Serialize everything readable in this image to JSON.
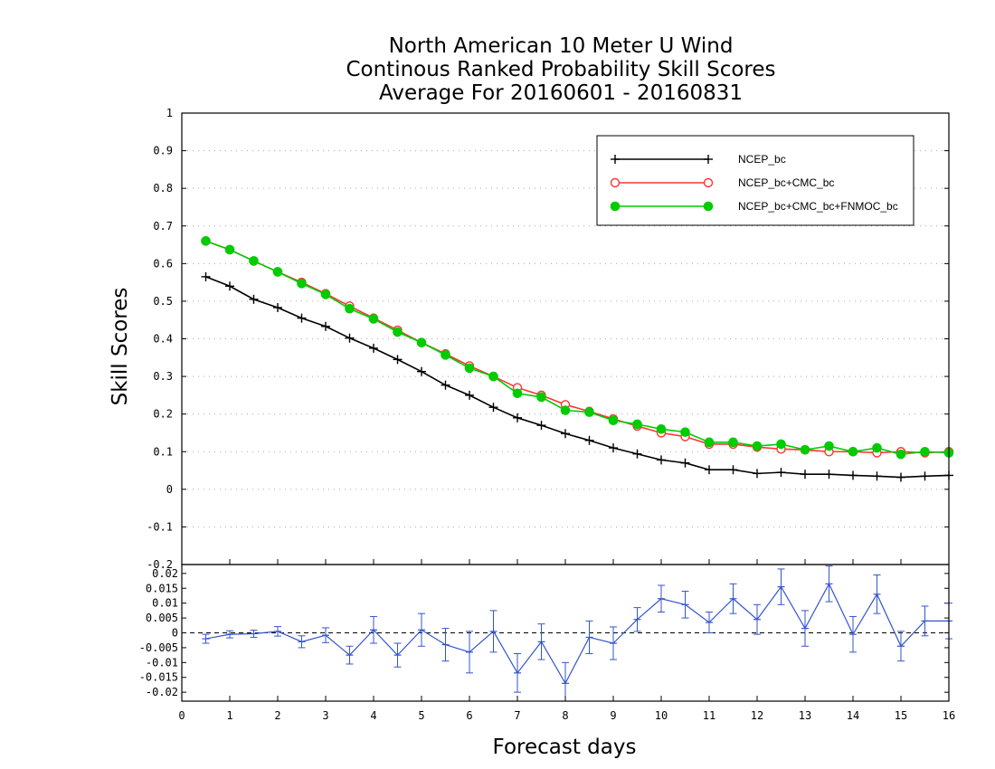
{
  "chart_data": [
    {
      "type": "line",
      "title": [
        "North American 10 Meter U Wind",
        "Continous Ranked Probability Skill Scores",
        "Average For 20160601 - 20160831"
      ],
      "xlabel": "Forecast days",
      "ylabel": "Skill Scores",
      "xlim": [
        0,
        16
      ],
      "ylim": [
        -0.2,
        1
      ],
      "x_ticks": [
        "0",
        "1",
        "2",
        "3",
        "4",
        "5",
        "6",
        "7",
        "8",
        "9",
        "10",
        "11",
        "12",
        "13",
        "14",
        "15",
        "16"
      ],
      "y_ticks": [
        "-0.2",
        "-0.1",
        "0",
        "0.1",
        "0.2",
        "0.3",
        "0.4",
        "0.5",
        "0.6",
        "0.7",
        "0.8",
        "0.9",
        "1"
      ],
      "grid": "horizontal dotted",
      "legend_position": "top-right",
      "x": [
        0.5,
        1,
        1.5,
        2,
        2.5,
        3,
        3.5,
        4,
        4.5,
        5,
        5.5,
        6,
        6.5,
        7,
        7.5,
        8,
        8.5,
        9,
        9.5,
        10,
        10.5,
        11,
        11.5,
        12,
        12.5,
        13,
        13.5,
        14,
        14.5,
        15,
        15.5,
        16
      ],
      "series": [
        {
          "name": "NCEP_bc",
          "color": "#000000",
          "marker": "plus",
          "values": [
            0.565,
            0.54,
            0.505,
            0.483,
            0.455,
            0.433,
            0.402,
            0.375,
            0.345,
            0.313,
            0.277,
            0.25,
            0.218,
            0.19,
            0.17,
            0.148,
            0.13,
            0.11,
            0.094,
            0.078,
            0.07,
            0.052,
            0.052,
            0.042,
            0.045,
            0.04,
            0.04,
            0.037,
            0.035,
            0.032,
            0.035,
            0.037
          ]
        },
        {
          "name": "NCEP_bc+CMC_bc",
          "color": "#ff3333",
          "marker": "open-circle",
          "values": [
            0.66,
            0.637,
            0.607,
            0.578,
            0.55,
            0.52,
            0.487,
            0.455,
            0.423,
            0.39,
            0.36,
            0.328,
            0.3,
            0.27,
            0.25,
            0.225,
            0.207,
            0.187,
            0.168,
            0.15,
            0.14,
            0.12,
            0.12,
            0.112,
            0.107,
            0.105,
            0.1,
            0.1,
            0.097,
            0.1,
            0.097,
            0.1
          ]
        },
        {
          "name": "NCEP_bc+CMC_bc+FNMOC_bc",
          "color": "#00cc00",
          "marker": "filled-circle",
          "values": [
            0.66,
            0.637,
            0.607,
            0.578,
            0.547,
            0.518,
            0.48,
            0.453,
            0.418,
            0.39,
            0.357,
            0.322,
            0.3,
            0.255,
            0.245,
            0.21,
            0.205,
            0.183,
            0.173,
            0.16,
            0.152,
            0.125,
            0.125,
            0.115,
            0.12,
            0.105,
            0.115,
            0.1,
            0.11,
            0.093,
            0.1,
            0.097
          ]
        }
      ]
    },
    {
      "type": "line",
      "panel": "difference",
      "xlim": [
        0,
        16
      ],
      "ylim": [
        -0.023,
        0.023
      ],
      "y_ticks": [
        "-0.02",
        "-0.015",
        "-0.01",
        "-0.005",
        "0",
        "0.005",
        "0.01",
        "0.015",
        "0.02"
      ],
      "x": [
        0.5,
        1,
        1.5,
        2,
        2.5,
        3,
        3.5,
        4,
        4.5,
        5,
        5.5,
        6,
        6.5,
        7,
        7.5,
        8,
        8.5,
        9,
        9.5,
        10,
        10.5,
        11,
        11.5,
        12,
        12.5,
        13,
        13.5,
        14,
        14.5,
        15,
        15.5,
        16
      ],
      "series": [
        {
          "color": "#3355cc",
          "marker": "plus",
          "values": [
            -0.002,
            -0.0005,
            -0.0003,
            0.0005,
            -0.003,
            -0.0008,
            -0.0075,
            0.001,
            -0.0075,
            0.001,
            -0.004,
            -0.0065,
            0.0005,
            -0.0135,
            -0.003,
            -0.017,
            -0.0015,
            -0.0035,
            0.0045,
            0.0115,
            0.0095,
            0.0035,
            0.0115,
            0.0045,
            0.0155,
            0.0015,
            0.0165,
            -0.0005,
            0.013,
            -0.0045,
            0.004,
            0.004
          ],
          "error": [
            0.0015,
            0.0012,
            0.0012,
            0.0016,
            0.002,
            0.0025,
            0.003,
            0.0045,
            0.004,
            0.0055,
            0.0055,
            0.007,
            0.007,
            0.0065,
            0.006,
            0.007,
            0.0055,
            0.0055,
            0.004,
            0.0045,
            0.0045,
            0.0035,
            0.005,
            0.005,
            0.006,
            0.006,
            0.006,
            0.006,
            0.0065,
            0.005,
            0.005,
            0.006
          ]
        }
      ]
    }
  ]
}
